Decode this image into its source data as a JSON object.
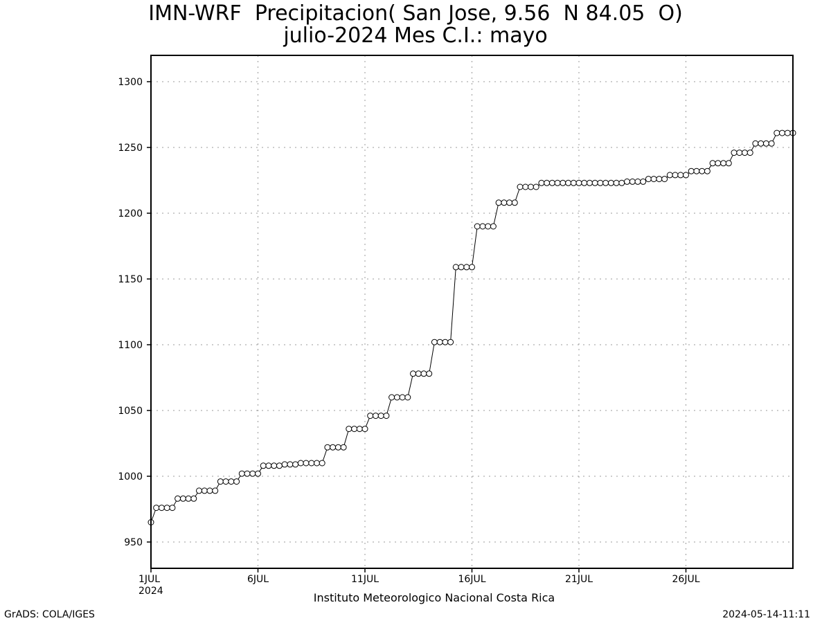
{
  "chart_data": {
    "type": "line",
    "title": "IMN-WRF  Precipitacion( San Jose, 9.56  N 84.05  O)",
    "subtitle": "julio-2024 Mes C.I.: mayo",
    "xlabel": "Instituto Meteorologico Nacional Costa Rica",
    "ylabel": "",
    "ylim": [
      930,
      1320
    ],
    "xlim": [
      1,
      31
    ],
    "y_ticks": [
      950,
      1000,
      1050,
      1100,
      1150,
      1200,
      1250,
      1300
    ],
    "x_ticks": [
      {
        "day": 1,
        "label": "1JUL",
        "sublabel": "2024"
      },
      {
        "day": 6,
        "label": "6JUL"
      },
      {
        "day": 11,
        "label": "11JUL"
      },
      {
        "day": 16,
        "label": "16JUL"
      },
      {
        "day": 21,
        "label": "21JUL"
      },
      {
        "day": 26,
        "label": "26JUL"
      }
    ],
    "grid": true,
    "marker": "open-circle",
    "step_per_day": 0.25,
    "series": [
      {
        "name": "",
        "values": [
          965,
          976,
          976,
          976,
          976,
          983,
          983,
          983,
          983,
          989,
          989,
          989,
          989,
          996,
          996,
          996,
          996,
          1002,
          1002,
          1002,
          1002,
          1008,
          1008,
          1008,
          1008,
          1009,
          1009,
          1009,
          1010,
          1010,
          1010,
          1010,
          1010,
          1022,
          1022,
          1022,
          1022,
          1036,
          1036,
          1036,
          1036,
          1046,
          1046,
          1046,
          1046,
          1060,
          1060,
          1060,
          1060,
          1078,
          1078,
          1078,
          1078,
          1102,
          1102,
          1102,
          1102,
          1159,
          1159,
          1159,
          1159,
          1190,
          1190,
          1190,
          1190,
          1208,
          1208,
          1208,
          1208,
          1220,
          1220,
          1220,
          1220,
          1223,
          1223,
          1223,
          1223,
          1223,
          1223,
          1223,
          1223,
          1223,
          1223,
          1223,
          1223,
          1223,
          1223,
          1223,
          1223,
          1224,
          1224,
          1224,
          1224,
          1226,
          1226,
          1226,
          1226,
          1229,
          1229,
          1229,
          1229,
          1232,
          1232,
          1232,
          1232,
          1238,
          1238,
          1238,
          1238,
          1246,
          1246,
          1246,
          1246,
          1253,
          1253,
          1253,
          1253,
          1261,
          1261,
          1261,
          1261
        ]
      }
    ]
  },
  "footer": {
    "left": "GrADS: COLA/IGES",
    "right": "2024-05-14-11:11"
  }
}
